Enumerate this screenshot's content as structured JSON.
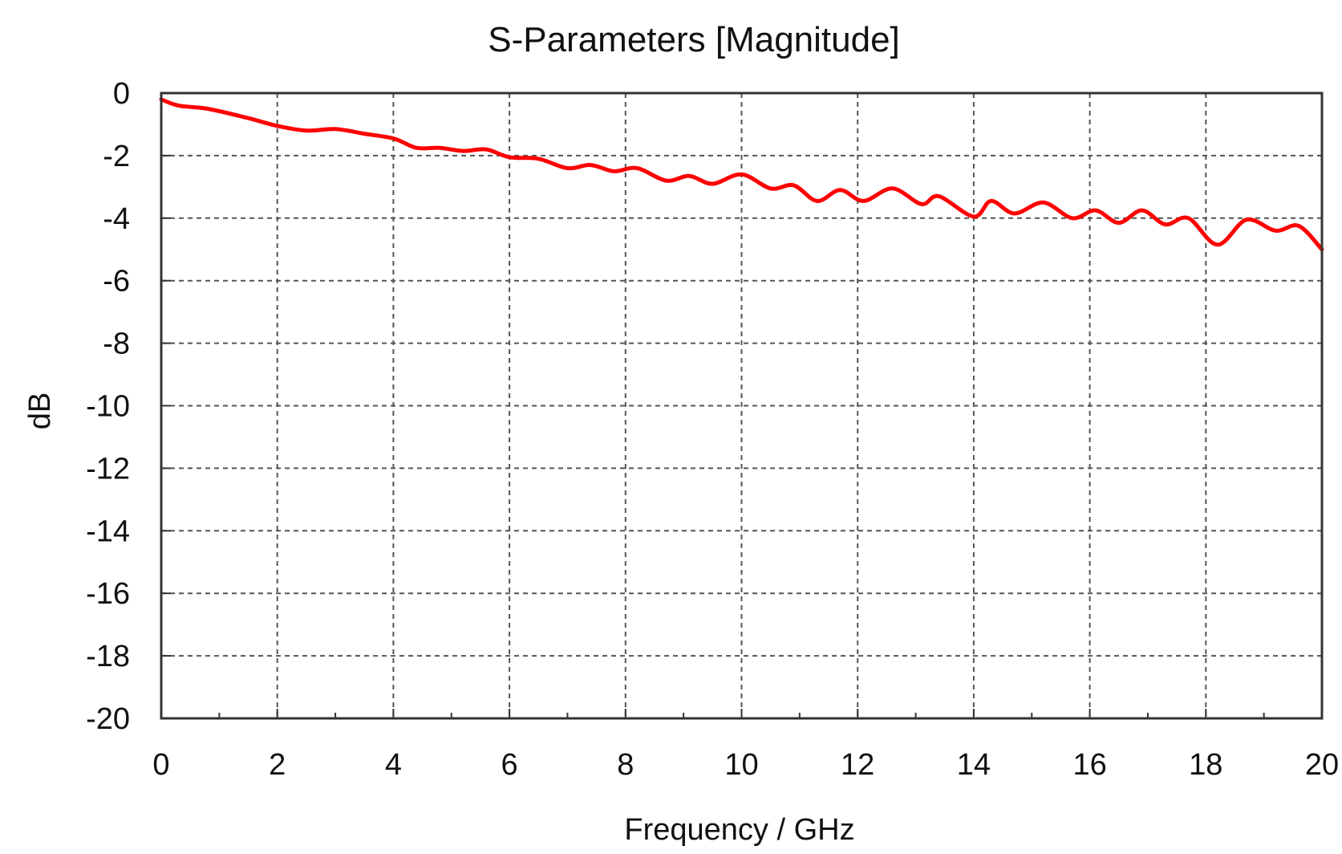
{
  "chart_data": {
    "type": "line",
    "title": "S-Parameters [Magnitude]",
    "xlabel": "Frequency / GHz",
    "ylabel": "dB",
    "xlim": [
      0,
      20
    ],
    "ylim": [
      -20,
      0
    ],
    "x_ticks": [
      0,
      2,
      4,
      6,
      8,
      10,
      12,
      14,
      16,
      18,
      20
    ],
    "y_ticks": [
      0,
      -2,
      -4,
      -6,
      -8,
      -10,
      -12,
      -14,
      -16,
      -18,
      -20
    ],
    "x_tick_labels": [
      "0",
      "2",
      "4",
      "6",
      "8",
      "10",
      "12",
      "14",
      "16",
      "18",
      "20"
    ],
    "y_tick_labels": [
      "0",
      "-2",
      "-4",
      "-6",
      "-8",
      "-10",
      "-12",
      "-14",
      "-16",
      "-18",
      "-20"
    ],
    "grid": true,
    "series": [
      {
        "color": "#ff0000",
        "x": [
          0,
          0.3,
          0.8,
          1.5,
          2.0,
          2.5,
          3.0,
          3.5,
          4.0,
          4.4,
          4.8,
          5.2,
          5.6,
          6.0,
          6.5,
          7.0,
          7.4,
          7.8,
          8.2,
          8.7,
          9.1,
          9.5,
          10.0,
          10.5,
          10.9,
          11.3,
          11.7,
          12.1,
          12.6,
          13.1,
          13.4,
          14.0,
          14.3,
          14.7,
          15.2,
          15.7,
          16.1,
          16.5,
          16.9,
          17.3,
          17.7,
          18.2,
          18.7,
          19.2,
          19.6,
          20.0
        ],
        "y": [
          -0.2,
          -0.4,
          -0.5,
          -0.8,
          -1.05,
          -1.2,
          -1.15,
          -1.3,
          -1.45,
          -1.75,
          -1.75,
          -1.85,
          -1.8,
          -2.05,
          -2.1,
          -2.4,
          -2.3,
          -2.5,
          -2.4,
          -2.8,
          -2.65,
          -2.9,
          -2.6,
          -3.05,
          -2.95,
          -3.45,
          -3.1,
          -3.45,
          -3.05,
          -3.55,
          -3.3,
          -3.95,
          -3.45,
          -3.85,
          -3.5,
          -4.0,
          -3.75,
          -4.15,
          -3.75,
          -4.2,
          -4.0,
          -4.85,
          -4.05,
          -4.4,
          -4.25,
          -5.0
        ]
      }
    ]
  }
}
